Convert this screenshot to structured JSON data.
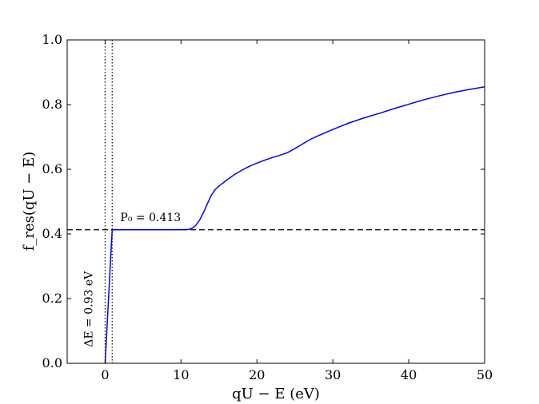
{
  "chart_data": {
    "type": "line",
    "title": "",
    "xlabel": "qU − E (eV)",
    "ylabel": "f_res(qU − E)",
    "xlim": [
      -5,
      50
    ],
    "ylim": [
      0.0,
      1.0
    ],
    "x_ticks": [
      0,
      10,
      20,
      30,
      40,
      50
    ],
    "y_ticks": [
      0.0,
      0.2,
      0.4,
      0.6,
      0.8,
      1.0
    ],
    "x_tick_labels": [
      "0",
      "10",
      "20",
      "30",
      "40",
      "50"
    ],
    "y_tick_labels": [
      "0.0",
      "0.2",
      "0.4",
      "0.6",
      "0.8",
      "1.0"
    ],
    "grid": false,
    "series": [
      {
        "color": "#0000ff",
        "x": [
          0,
          0.93,
          2,
          5,
          8,
          10,
          11,
          11.5,
          12,
          12.5,
          13,
          13.5,
          14,
          14.5,
          15,
          16,
          17,
          18,
          19,
          20,
          21,
          22,
          23,
          24,
          25,
          26,
          27,
          28,
          30,
          32,
          34,
          36,
          38,
          40,
          42,
          44,
          46,
          48,
          50
        ],
        "y": [
          0.0,
          0.413,
          0.413,
          0.413,
          0.413,
          0.413,
          0.414,
          0.418,
          0.428,
          0.445,
          0.468,
          0.495,
          0.52,
          0.537,
          0.548,
          0.566,
          0.583,
          0.597,
          0.609,
          0.619,
          0.628,
          0.636,
          0.643,
          0.651,
          0.664,
          0.678,
          0.692,
          0.703,
          0.723,
          0.742,
          0.758,
          0.772,
          0.787,
          0.801,
          0.815,
          0.827,
          0.838,
          0.847,
          0.855
        ]
      }
    ],
    "reference_lines": [
      {
        "orientation": "horizontal",
        "value": 0.413,
        "style": "dashed",
        "color": "#000000"
      },
      {
        "orientation": "vertical",
        "value": 0,
        "style": "dotted",
        "color": "#000000"
      },
      {
        "orientation": "vertical",
        "value": 0.93,
        "style": "dotted",
        "color": "#000000"
      }
    ],
    "annotations": [
      {
        "text": "P₀ = 0.413",
        "x": 2,
        "y": 0.44
      },
      {
        "text": "ΔE = 0.93 eV",
        "x": -1.7,
        "y": 0.05,
        "rotation": -90
      }
    ]
  }
}
